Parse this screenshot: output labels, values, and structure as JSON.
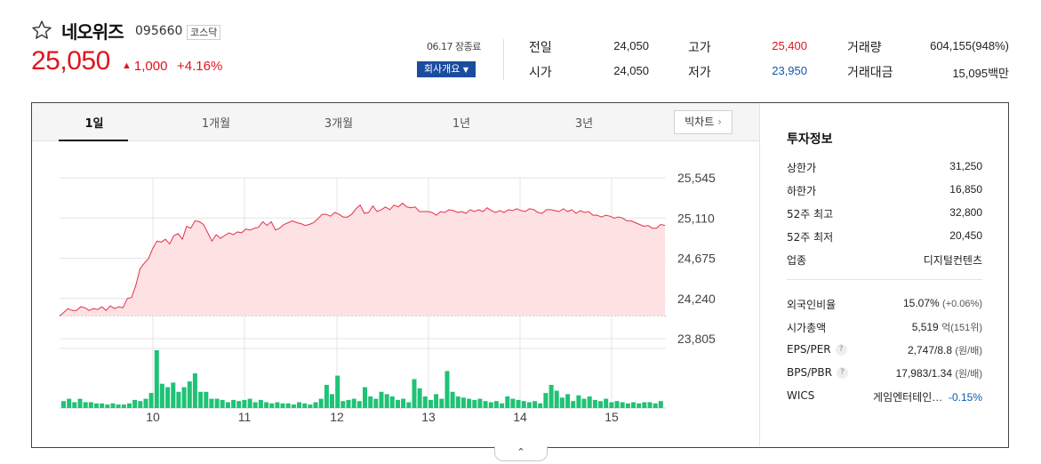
{
  "header": {
    "name": "네오위즈",
    "code": "095660",
    "market": "코스닥",
    "price": "25,050",
    "change": "1,000",
    "change_pct": "+4.16%",
    "close_time": "06.17 장종료",
    "company_button": "회사개요"
  },
  "quote": {
    "prev_close_label": "전일",
    "prev_close": "24,050",
    "open_label": "시가",
    "open": "24,050",
    "high_label": "고가",
    "high": "25,400",
    "low_label": "저가",
    "low": "23,950",
    "volume_label": "거래량",
    "volume": "604,155(948%)",
    "amount_label": "거래대금",
    "amount": "15,095백만"
  },
  "tabs": [
    "1일",
    "1개월",
    "3개월",
    "1년",
    "3년"
  ],
  "big_chart_label": "빅차트",
  "side": {
    "title": "투자정보",
    "upper_limit_label": "상한가",
    "upper_limit": "31,250",
    "lower_limit_label": "하한가",
    "lower_limit": "16,850",
    "high52_label": "52주 최고",
    "high52": "32,800",
    "low52_label": "52주 최저",
    "low52": "20,450",
    "sector_label": "업종",
    "sector": "디지털컨텐츠",
    "foreign_label": "외국인비율",
    "foreign": "15.07%",
    "foreign_change": "(+0.06%)",
    "mcap_label": "시가총액",
    "mcap": "5,519",
    "mcap_unit": "억(151위)",
    "eps_label": "EPS/PER",
    "eps": "2,747/8.8",
    "eps_unit": "(원/배)",
    "bps_label": "BPS/PBR",
    "bps": "17,983/1.34",
    "bps_unit": "(원/배)",
    "wics_label": "WICS",
    "wics": "게임엔터테인…",
    "wics_change": "-0.15%"
  },
  "colors": {
    "up": "#e2131e",
    "down": "#0e58ad",
    "volume": "#1fc276",
    "line": "#e2324a",
    "area": "#fde1e3"
  },
  "chart_data": {
    "type": "area",
    "y_ticks": [
      25545,
      25110,
      24675,
      24240,
      23805
    ],
    "ylim": [
      23805,
      25545
    ],
    "x_ticks": [
      "10",
      "11",
      "12",
      "13",
      "14",
      "15"
    ],
    "prev_close": 24050,
    "price_series": [
      24050,
      24090,
      24130,
      24110,
      24110,
      24150,
      24140,
      24110,
      24130,
      24120,
      24150,
      24110,
      24160,
      24130,
      24150,
      24140,
      24240,
      24250,
      24380,
      24560,
      24620,
      24670,
      24780,
      24860,
      24850,
      24880,
      24830,
      24920,
      24940,
      24880,
      25020,
      25000,
      25080,
      25070,
      25040,
      24950,
      24860,
      24930,
      24890,
      24920,
      24950,
      24930,
      24960,
      24950,
      24990,
      24980,
      25000,
      25010,
      25070,
      25030,
      25070,
      24980,
      25000,
      25040,
      25060,
      25080,
      25060,
      25050,
      25030,
      25040,
      25060,
      25100,
      25150,
      25150,
      25130,
      25170,
      25150,
      25120,
      25120,
      25150,
      25210,
      25250,
      25160,
      25170,
      25240,
      25180,
      25200,
      25230,
      25200,
      25250,
      25230,
      25270,
      25230,
      25220,
      25230,
      25180,
      25180,
      25180,
      25170,
      25140,
      25180,
      25170,
      25200,
      25190,
      25170,
      25180,
      25160,
      25200,
      25180,
      25200,
      25180,
      25220,
      25190,
      25170,
      25190,
      25170,
      25200,
      25190,
      25210,
      25190,
      25180,
      25210,
      25200,
      25170,
      25160,
      25200,
      25200,
      25190,
      25180,
      25210,
      25180,
      25200,
      25160,
      25190,
      25170,
      25180,
      25140,
      25140,
      25120,
      25140,
      25130,
      25110,
      25120,
      25110,
      25080,
      25080,
      25060,
      25040,
      25020,
      25030,
      25000,
      25000,
      25040,
      25030
    ],
    "volume_series": [
      6,
      8,
      5,
      8,
      5,
      5,
      4,
      4,
      3,
      4,
      3,
      3,
      4,
      7,
      6,
      8,
      13,
      50,
      21,
      18,
      22,
      14,
      18,
      23,
      30,
      14,
      14,
      8,
      8,
      7,
      5,
      7,
      6,
      7,
      8,
      5,
      7,
      5,
      4,
      5,
      4,
      4,
      3,
      5,
      4,
      3,
      5,
      8,
      20,
      12,
      28,
      6,
      7,
      8,
      6,
      18,
      10,
      8,
      14,
      12,
      10,
      7,
      8,
      5,
      25,
      17,
      10,
      7,
      12,
      8,
      32,
      14,
      10,
      9,
      8,
      7,
      8,
      6,
      5,
      6,
      4,
      10,
      8,
      7,
      6,
      5,
      6,
      4,
      13,
      20,
      15,
      9,
      12,
      6,
      11,
      8,
      10,
      7,
      6,
      8,
      5,
      6,
      5,
      4,
      5,
      4,
      5,
      5,
      4,
      6
    ]
  }
}
